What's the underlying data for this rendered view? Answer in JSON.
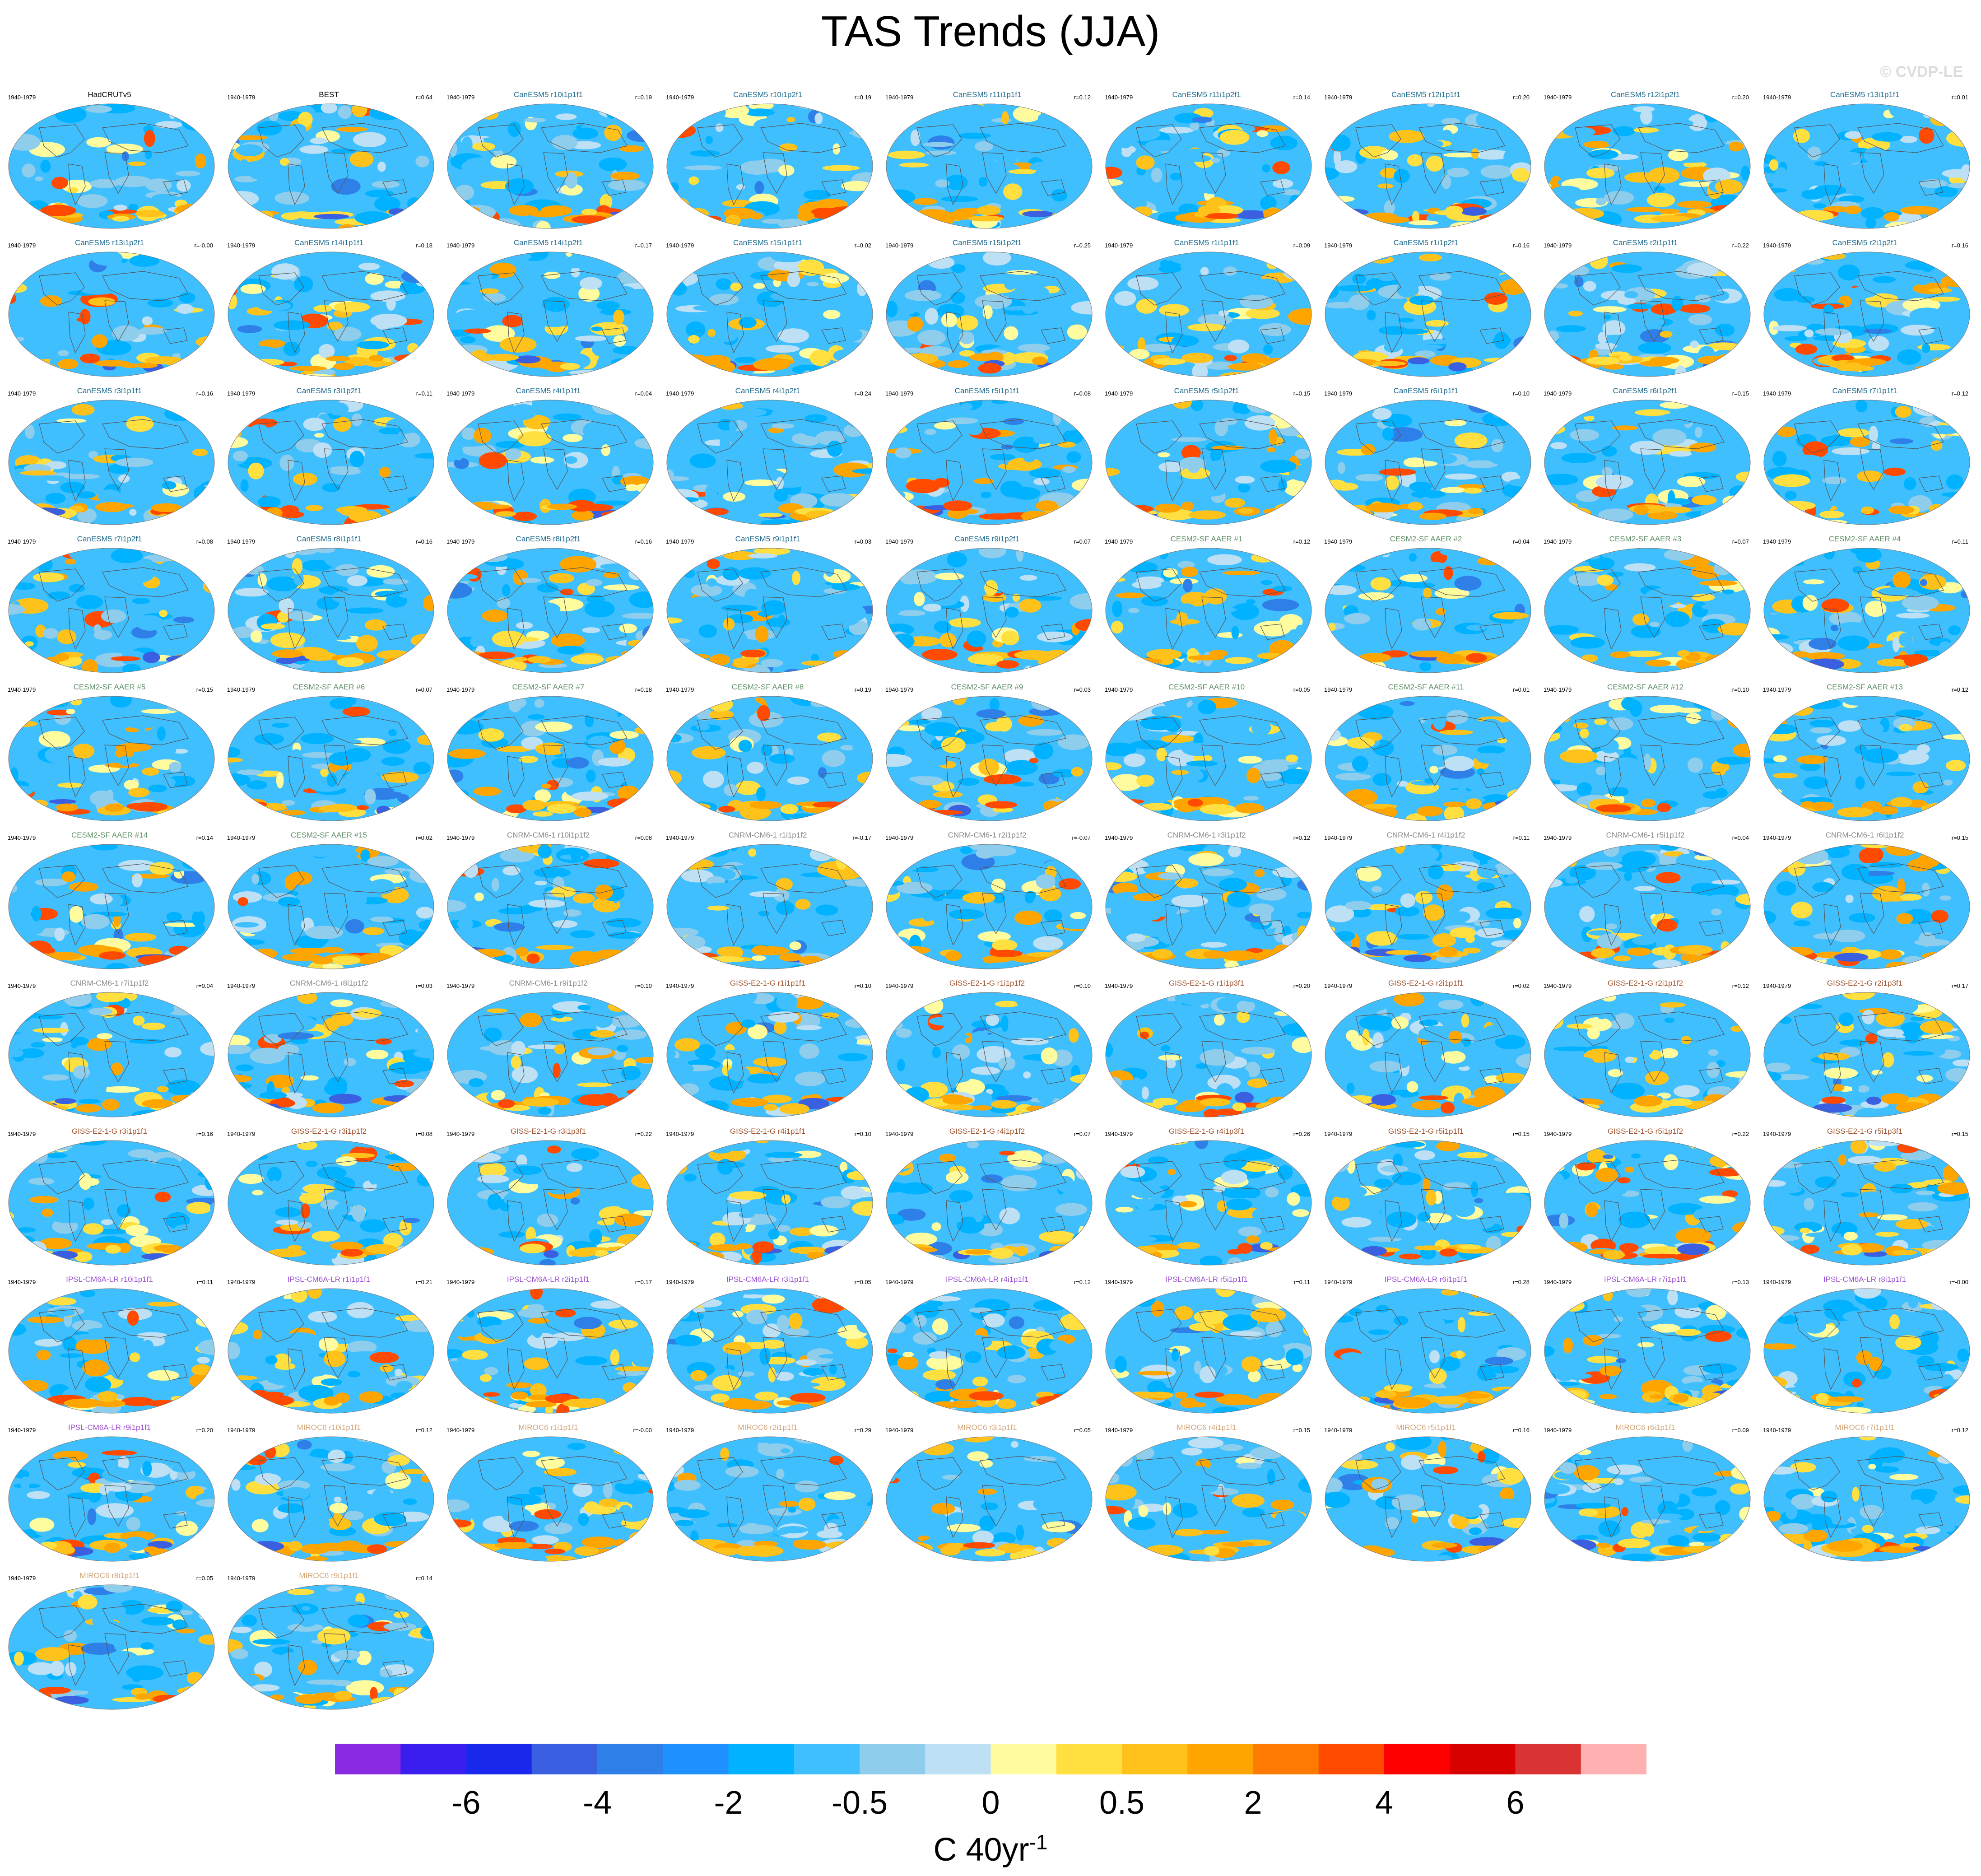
{
  "title": "TAS Trends (JJA)",
  "watermark": "© CVDP-LE",
  "chart_data": {
    "type": "heatmap",
    "title": "TAS Trends (JJA)",
    "period": "1940-1979",
    "units": "C 40yr-1",
    "colorbar": {
      "label": "C 40yr",
      "label_exponent": "-1",
      "tick_labels": [
        "-6",
        "-4",
        "-2",
        "-0.5",
        "0",
        "0.5",
        "2",
        "4",
        "6"
      ],
      "colors": [
        "#8a2be2",
        "#3a1ef0",
        "#1a28ee",
        "#3a5fe0",
        "#2f7fe8",
        "#1e90ff",
        "#00b2ff",
        "#40bfff",
        "#8fcdec",
        "#bde0f5",
        "#fffca0",
        "#ffe040",
        "#ffc21a",
        "#ffa500",
        "#ff7a00",
        "#ff4a00",
        "#ff0000",
        "#d90000",
        "#d93333",
        "#ffb0b0"
      ]
    },
    "panels": [
      {
        "name": "HadCRUTv5",
        "period": "1940-1979",
        "r": "",
        "group": "obs"
      },
      {
        "name": "BEST",
        "period": "1940-1979",
        "r": "r=0.64",
        "group": "obs"
      },
      {
        "name": "CanESM5 r10i1p1f1",
        "period": "1940-1979",
        "r": "r=0.19",
        "group": "CanESM5"
      },
      {
        "name": "CanESM5 r10i1p2f1",
        "period": "1940-1979",
        "r": "r=0.19",
        "group": "CanESM5"
      },
      {
        "name": "CanESM5 r11i1p1f1",
        "period": "1940-1979",
        "r": "r=0.12",
        "group": "CanESM5"
      },
      {
        "name": "CanESM5 r11i1p2f1",
        "period": "1940-1979",
        "r": "r=0.14",
        "group": "CanESM5"
      },
      {
        "name": "CanESM5 r12i1p1f1",
        "period": "1940-1979",
        "r": "r=0.20",
        "group": "CanESM5"
      },
      {
        "name": "CanESM5 r12i1p2f1",
        "period": "1940-1979",
        "r": "r=0.20",
        "group": "CanESM5"
      },
      {
        "name": "CanESM5 r13i1p1f1",
        "period": "1940-1979",
        "r": "r=0.01",
        "group": "CanESM5"
      },
      {
        "name": "CanESM5 r13i1p2f1",
        "period": "1940-1979",
        "r": "r=-0.00",
        "group": "CanESM5"
      },
      {
        "name": "CanESM5 r14i1p1f1",
        "period": "1940-1979",
        "r": "r=0.18",
        "group": "CanESM5"
      },
      {
        "name": "CanESM5 r14i1p2f1",
        "period": "1940-1979",
        "r": "r=0.17",
        "group": "CanESM5"
      },
      {
        "name": "CanESM5 r15i1p1f1",
        "period": "1940-1979",
        "r": "r=0.02",
        "group": "CanESM5"
      },
      {
        "name": "CanESM5 r15i1p2f1",
        "period": "1940-1979",
        "r": "r=0.25",
        "group": "CanESM5"
      },
      {
        "name": "CanESM5 r1i1p1f1",
        "period": "1940-1979",
        "r": "r=0.09",
        "group": "CanESM5"
      },
      {
        "name": "CanESM5 r1i1p2f1",
        "period": "1940-1979",
        "r": "r=0.16",
        "group": "CanESM5"
      },
      {
        "name": "CanESM5 r2i1p1f1",
        "period": "1940-1979",
        "r": "r=0.22",
        "group": "CanESM5"
      },
      {
        "name": "CanESM5 r2i1p2f1",
        "period": "1940-1979",
        "r": "r=0.16",
        "group": "CanESM5"
      },
      {
        "name": "CanESM5 r3i1p1f1",
        "period": "1940-1979",
        "r": "r=0.16",
        "group": "CanESM5"
      },
      {
        "name": "CanESM5 r3i1p2f1",
        "period": "1940-1979",
        "r": "r=0.11",
        "group": "CanESM5"
      },
      {
        "name": "CanESM5 r4i1p1f1",
        "period": "1940-1979",
        "r": "r=0.04",
        "group": "CanESM5"
      },
      {
        "name": "CanESM5 r4i1p2f1",
        "period": "1940-1979",
        "r": "r=0.24",
        "group": "CanESM5"
      },
      {
        "name": "CanESM5 r5i1p1f1",
        "period": "1940-1979",
        "r": "r=0.08",
        "group": "CanESM5"
      },
      {
        "name": "CanESM5 r5i1p2f1",
        "period": "1940-1979",
        "r": "r=0.15",
        "group": "CanESM5"
      },
      {
        "name": "CanESM5 r6i1p1f1",
        "period": "1940-1979",
        "r": "r=0.10",
        "group": "CanESM5"
      },
      {
        "name": "CanESM5 r6i1p2f1",
        "period": "1940-1979",
        "r": "r=0.15",
        "group": "CanESM5"
      },
      {
        "name": "CanESM5 r7i1p1f1",
        "period": "1940-1979",
        "r": "r=0.12",
        "group": "CanESM5"
      },
      {
        "name": "CanESM5 r7i1p2f1",
        "period": "1940-1979",
        "r": "r=0.08",
        "group": "CanESM5"
      },
      {
        "name": "CanESM5 r8i1p1f1",
        "period": "1940-1979",
        "r": "r=0.16",
        "group": "CanESM5"
      },
      {
        "name": "CanESM5 r8i1p2f1",
        "period": "1940-1979",
        "r": "r=0.16",
        "group": "CanESM5"
      },
      {
        "name": "CanESM5 r9i1p1f1",
        "period": "1940-1979",
        "r": "r=0.03",
        "group": "CanESM5"
      },
      {
        "name": "CanESM5 r9i1p2f1",
        "period": "1940-1979",
        "r": "r=0.07",
        "group": "CanESM5"
      },
      {
        "name": "CESM2-SF AAER #1",
        "period": "1940-1979",
        "r": "r=0.12",
        "group": "CESM2-SF AAER"
      },
      {
        "name": "CESM2-SF AAER #2",
        "period": "1940-1979",
        "r": "r=0.04",
        "group": "CESM2-SF AAER"
      },
      {
        "name": "CESM2-SF AAER #3",
        "period": "1940-1979",
        "r": "r=0.07",
        "group": "CESM2-SF AAER"
      },
      {
        "name": "CESM2-SF AAER #4",
        "period": "1940-1979",
        "r": "r=0.11",
        "group": "CESM2-SF AAER"
      },
      {
        "name": "CESM2-SF AAER #5",
        "period": "1940-1979",
        "r": "r=0.15",
        "group": "CESM2-SF AAER"
      },
      {
        "name": "CESM2-SF AAER #6",
        "period": "1940-1979",
        "r": "r=0.07",
        "group": "CESM2-SF AAER"
      },
      {
        "name": "CESM2-SF AAER #7",
        "period": "1940-1979",
        "r": "r=0.18",
        "group": "CESM2-SF AAER"
      },
      {
        "name": "CESM2-SF AAER #8",
        "period": "1940-1979",
        "r": "r=0.19",
        "group": "CESM2-SF AAER"
      },
      {
        "name": "CESM2-SF AAER #9",
        "period": "1940-1979",
        "r": "r=0.03",
        "group": "CESM2-SF AAER"
      },
      {
        "name": "CESM2-SF AAER #10",
        "period": "1940-1979",
        "r": "r=0.05",
        "group": "CESM2-SF AAER"
      },
      {
        "name": "CESM2-SF AAER #11",
        "period": "1940-1979",
        "r": "r=0.01",
        "group": "CESM2-SF AAER"
      },
      {
        "name": "CESM2-SF AAER #12",
        "period": "1940-1979",
        "r": "r=0.10",
        "group": "CESM2-SF AAER"
      },
      {
        "name": "CESM2-SF AAER #13",
        "period": "1940-1979",
        "r": "r=0.12",
        "group": "CESM2-SF AAER"
      },
      {
        "name": "CESM2-SF AAER #14",
        "period": "1940-1979",
        "r": "r=0.14",
        "group": "CESM2-SF AAER"
      },
      {
        "name": "CESM2-SF AAER #15",
        "period": "1940-1979",
        "r": "r=0.02",
        "group": "CESM2-SF AAER"
      },
      {
        "name": "CNRM-CM6-1 r10i1p1f2",
        "period": "1940-1979",
        "r": "r=0.08",
        "group": "CNRM-CM6-1"
      },
      {
        "name": "CNRM-CM6-1 r1i1p1f2",
        "period": "1940-1979",
        "r": "r=-0.17",
        "group": "CNRM-CM6-1"
      },
      {
        "name": "CNRM-CM6-1 r2i1p1f2",
        "period": "1940-1979",
        "r": "r=-0.07",
        "group": "CNRM-CM6-1"
      },
      {
        "name": "CNRM-CM6-1 r3i1p1f2",
        "period": "1940-1979",
        "r": "r=0.12",
        "group": "CNRM-CM6-1"
      },
      {
        "name": "CNRM-CM6-1 r4i1p1f2",
        "period": "1940-1979",
        "r": "r=0.11",
        "group": "CNRM-CM6-1"
      },
      {
        "name": "CNRM-CM6-1 r5i1p1f2",
        "period": "1940-1979",
        "r": "r=0.04",
        "group": "CNRM-CM6-1"
      },
      {
        "name": "CNRM-CM6-1 r6i1p1f2",
        "period": "1940-1979",
        "r": "r=0.15",
        "group": "CNRM-CM6-1"
      },
      {
        "name": "CNRM-CM6-1 r7i1p1f2",
        "period": "1940-1979",
        "r": "r=0.04",
        "group": "CNRM-CM6-1"
      },
      {
        "name": "CNRM-CM6-1 r8i1p1f2",
        "period": "1940-1979",
        "r": "r=0.03",
        "group": "CNRM-CM6-1"
      },
      {
        "name": "CNRM-CM6-1 r9i1p1f2",
        "period": "1940-1979",
        "r": "r=0.10",
        "group": "CNRM-CM6-1"
      },
      {
        "name": "GISS-E2-1-G r1i1p1f1",
        "period": "1940-1979",
        "r": "r=0.10",
        "group": "GISS-E2-1-G"
      },
      {
        "name": "GISS-E2-1-G r1i1p1f2",
        "period": "1940-1979",
        "r": "r=0.10",
        "group": "GISS-E2-1-G"
      },
      {
        "name": "GISS-E2-1-G r1i1p3f1",
        "period": "1940-1979",
        "r": "r=0.20",
        "group": "GISS-E2-1-G"
      },
      {
        "name": "GISS-E2-1-G r2i1p1f1",
        "period": "1940-1979",
        "r": "r=0.02",
        "group": "GISS-E2-1-G"
      },
      {
        "name": "GISS-E2-1-G r2i1p1f2",
        "period": "1940-1979",
        "r": "r=0.12",
        "group": "GISS-E2-1-G"
      },
      {
        "name": "GISS-E2-1-G r2i1p3f1",
        "period": "1940-1979",
        "r": "r=0.17",
        "group": "GISS-E2-1-G"
      },
      {
        "name": "GISS-E2-1-G r3i1p1f1",
        "period": "1940-1979",
        "r": "r=0.16",
        "group": "GISS-E2-1-G"
      },
      {
        "name": "GISS-E2-1-G r3i1p1f2",
        "period": "1940-1979",
        "r": "r=0.08",
        "group": "GISS-E2-1-G"
      },
      {
        "name": "GISS-E2-1-G r3i1p3f1",
        "period": "1940-1979",
        "r": "r=0.22",
        "group": "GISS-E2-1-G"
      },
      {
        "name": "GISS-E2-1-G r4i1p1f1",
        "period": "1940-1979",
        "r": "r=0.10",
        "group": "GISS-E2-1-G"
      },
      {
        "name": "GISS-E2-1-G r4i1p1f2",
        "period": "1940-1979",
        "r": "r=0.07",
        "group": "GISS-E2-1-G"
      },
      {
        "name": "GISS-E2-1-G r4i1p3f1",
        "period": "1940-1979",
        "r": "r=0.26",
        "group": "GISS-E2-1-G"
      },
      {
        "name": "GISS-E2-1-G r5i1p1f1",
        "period": "1940-1979",
        "r": "r=0.15",
        "group": "GISS-E2-1-G"
      },
      {
        "name": "GISS-E2-1-G r5i1p1f2",
        "period": "1940-1979",
        "r": "r=0.22",
        "group": "GISS-E2-1-G"
      },
      {
        "name": "GISS-E2-1-G r5i1p3f1",
        "period": "1940-1979",
        "r": "r=0.15",
        "group": "GISS-E2-1-G"
      },
      {
        "name": "IPSL-CM6A-LR r10i1p1f1",
        "period": "1940-1979",
        "r": "r=0.11",
        "group": "IPSL-CM6A-LR"
      },
      {
        "name": "IPSL-CM6A-LR r1i1p1f1",
        "period": "1940-1979",
        "r": "r=0.21",
        "group": "IPSL-CM6A-LR"
      },
      {
        "name": "IPSL-CM6A-LR r2i1p1f1",
        "period": "1940-1979",
        "r": "r=0.17",
        "group": "IPSL-CM6A-LR"
      },
      {
        "name": "IPSL-CM6A-LR r3i1p1f1",
        "period": "1940-1979",
        "r": "r=0.05",
        "group": "IPSL-CM6A-LR"
      },
      {
        "name": "IPSL-CM6A-LR r4i1p1f1",
        "period": "1940-1979",
        "r": "r=0.12",
        "group": "IPSL-CM6A-LR"
      },
      {
        "name": "IPSL-CM6A-LR r5i1p1f1",
        "period": "1940-1979",
        "r": "r=0.11",
        "group": "IPSL-CM6A-LR"
      },
      {
        "name": "IPSL-CM6A-LR r6i1p1f1",
        "period": "1940-1979",
        "r": "r=0.28",
        "group": "IPSL-CM6A-LR"
      },
      {
        "name": "IPSL-CM6A-LR r7i1p1f1",
        "period": "1940-1979",
        "r": "r=0.13",
        "group": "IPSL-CM6A-LR"
      },
      {
        "name": "IPSL-CM6A-LR r8i1p1f1",
        "period": "1940-1979",
        "r": "r=-0.00",
        "group": "IPSL-CM6A-LR"
      },
      {
        "name": "IPSL-CM6A-LR r9i1p1f1",
        "period": "1940-1979",
        "r": "r=0.20",
        "group": "IPSL-CM6A-LR"
      },
      {
        "name": "MIROC6 r10i1p1f1",
        "period": "1940-1979",
        "r": "r=0.12",
        "group": "MIROC6"
      },
      {
        "name": "MIROC6 r1i1p1f1",
        "period": "1940-1979",
        "r": "r=-0.00",
        "group": "MIROC6"
      },
      {
        "name": "MIROC6 r2i1p1f1",
        "period": "1940-1979",
        "r": "r=0.29",
        "group": "MIROC6"
      },
      {
        "name": "MIROC6 r3i1p1f1",
        "period": "1940-1979",
        "r": "r=0.05",
        "group": "MIROC6"
      },
      {
        "name": "MIROC6 r4i1p1f1",
        "period": "1940-1979",
        "r": "r=0.15",
        "group": "MIROC6"
      },
      {
        "name": "MIROC6 r5i1p1f1",
        "period": "1940-1979",
        "r": "r=0.16",
        "group": "MIROC6"
      },
      {
        "name": "MIROC6 r6i1p1f1",
        "period": "1940-1979",
        "r": "r=0.09",
        "group": "MIROC6"
      },
      {
        "name": "MIROC6 r7i1p1f1",
        "period": "1940-1979",
        "r": "r=0.12",
        "group": "MIROC6"
      },
      {
        "name": "MIROC6 r8i1p1f1",
        "period": "1940-1979",
        "r": "r=0.05",
        "group": "MIROC6"
      },
      {
        "name": "MIROC6 r9i1p1f1",
        "period": "1940-1979",
        "r": "r=0.14",
        "group": "MIROC6"
      }
    ]
  },
  "group_colors": {
    "obs": "#000000",
    "CanESM5": "#1f6b8f",
    "CESM2-SF AAER": "#5f8f66",
    "CNRM-CM6-1": "#8a8a8a",
    "GISS-E2-1-G": "#a0522d",
    "IPSL-CM6A-LR": "#9a4fcf",
    "MIROC6": "#d2a679"
  }
}
